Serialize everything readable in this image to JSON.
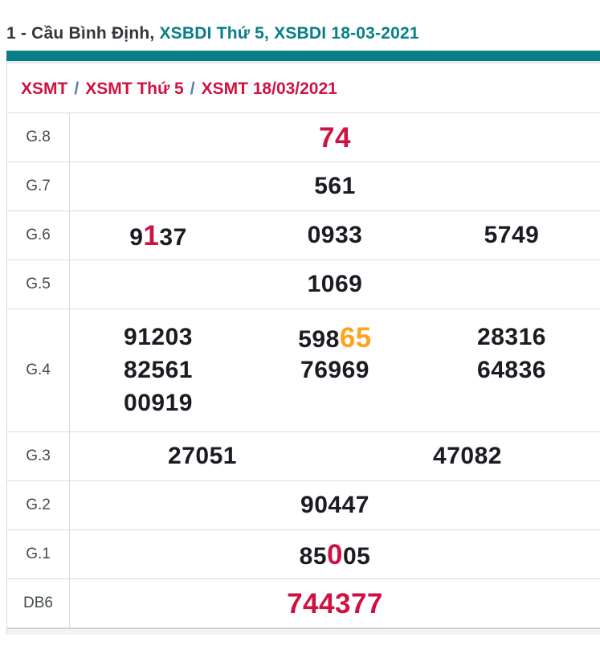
{
  "header": {
    "title_prefix": "1 - Cầu Bình Định, ",
    "title_link": "XSBDI Thứ 5, XSBDI 18-03-2021"
  },
  "breadcrumb": {
    "separator": "/",
    "items": [
      "XSMT",
      "XSMT Thứ 5",
      "XSMT 18/03/2021"
    ]
  },
  "colors": {
    "teal": "#087f88",
    "crimson": "#d01243",
    "orange": "#ffa41c",
    "number_dark": "#1b1b22",
    "border": "#dcdcdc"
  },
  "results_table": {
    "rows": [
      {
        "label": "G.8",
        "cols": 1,
        "lines": [
          [
            [
              {
                "t": "74",
                "s": "red"
              }
            ]
          ]
        ]
      },
      {
        "label": "G.7",
        "cols": 1,
        "lines": [
          [
            [
              {
                "t": "561",
                "s": "n"
              }
            ]
          ]
        ]
      },
      {
        "label": "G.6",
        "cols": 3,
        "lines": [
          [
            [
              {
                "t": "9",
                "s": "n"
              },
              {
                "t": "1",
                "s": "red"
              },
              {
                "t": "37",
                "s": "n"
              }
            ],
            [
              {
                "t": "0933",
                "s": "n"
              }
            ],
            [
              {
                "t": "5749",
                "s": "n"
              }
            ]
          ]
        ]
      },
      {
        "label": "G.5",
        "cols": 1,
        "lines": [
          [
            [
              {
                "t": "1069",
                "s": "n"
              }
            ]
          ]
        ]
      },
      {
        "label": "G.4",
        "cols": 3,
        "lines": [
          [
            [
              {
                "t": "91203",
                "s": "n"
              }
            ],
            [
              {
                "t": "598",
                "s": "n"
              },
              {
                "t": "65",
                "s": "orange"
              }
            ],
            [
              {
                "t": "28316",
                "s": "n"
              }
            ]
          ],
          [
            [
              {
                "t": "82561",
                "s": "n"
              }
            ],
            [
              {
                "t": "76969",
                "s": "n"
              }
            ],
            [
              {
                "t": "64836",
                "s": "n"
              }
            ]
          ],
          [
            [
              {
                "t": "00919",
                "s": "n"
              }
            ],
            [],
            []
          ]
        ]
      },
      {
        "label": "G.3",
        "cols": 2,
        "lines": [
          [
            [
              {
                "t": "27051",
                "s": "n"
              }
            ],
            [
              {
                "t": "47082",
                "s": "n"
              }
            ]
          ]
        ]
      },
      {
        "label": "G.2",
        "cols": 1,
        "lines": [
          [
            [
              {
                "t": "90447",
                "s": "n"
              }
            ]
          ]
        ]
      },
      {
        "label": "G.1",
        "cols": 1,
        "lines": [
          [
            [
              {
                "t": "85",
                "s": "n"
              },
              {
                "t": "0",
                "s": "red"
              },
              {
                "t": "05",
                "s": "n"
              }
            ]
          ]
        ]
      },
      {
        "label": "DB6",
        "cols": 1,
        "lines": [
          [
            [
              {
                "t": "744377",
                "s": "red"
              }
            ]
          ]
        ]
      }
    ]
  }
}
